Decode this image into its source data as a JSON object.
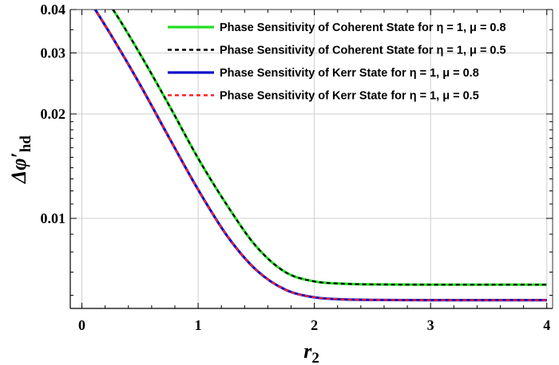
{
  "chart_data": {
    "type": "line",
    "x_axis": {
      "label": "r",
      "label_subscript": "2",
      "range": [
        -0.1,
        4.05
      ],
      "ticks": [
        0,
        1,
        2,
        3,
        4
      ],
      "tick_labels": [
        "0",
        "1",
        "2",
        "3",
        "4"
      ]
    },
    "y_axis": {
      "label": "Δφ′",
      "label_subscript": "hd",
      "scale": "log",
      "range": [
        0.0055,
        0.04
      ],
      "ticks": [
        0.01,
        0.02,
        0.03,
        0.04
      ],
      "tick_labels": [
        "0.01",
        "0.02",
        "0.03",
        "0.04"
      ]
    },
    "grid": true,
    "legend_position": "top-right",
    "series": [
      {
        "name": "Phase Sensitivity of Coherent State for η = 1, μ = 0.8",
        "color": "#22dd22",
        "style": "solid",
        "x": [
          0.0,
          0.25,
          0.5,
          0.75,
          1.0,
          1.25,
          1.5,
          1.75,
          2.0,
          2.25,
          2.5,
          3.0,
          3.5,
          4.0
        ],
        "y": [
          0.052,
          0.0408,
          0.0298,
          0.0212,
          0.0149,
          0.0109,
          0.0083,
          0.007,
          0.00658,
          0.00648,
          0.00645,
          0.00644,
          0.00644,
          0.00644
        ]
      },
      {
        "name": "Phase Sensitivity of Coherent State for η = 1, μ = 0.5",
        "color": "#000000",
        "style": "dashed",
        "x": [
          0.0,
          0.25,
          0.5,
          0.75,
          1.0,
          1.25,
          1.5,
          1.75,
          2.0,
          2.25,
          2.5,
          3.0,
          3.5,
          4.0
        ],
        "y": [
          0.052,
          0.0408,
          0.0298,
          0.0212,
          0.0149,
          0.0109,
          0.0083,
          0.007,
          0.00658,
          0.00648,
          0.00645,
          0.00644,
          0.00644,
          0.00644
        ]
      },
      {
        "name": "Phase Sensitivity of Kerr State for η = 1, μ = 0.8",
        "color": "#1010cc",
        "style": "solid",
        "x": [
          0.0,
          0.25,
          0.5,
          0.75,
          1.0,
          1.25,
          1.5,
          1.75,
          2.0,
          2.25,
          2.5,
          3.0,
          3.5,
          4.0
        ],
        "y": [
          0.046,
          0.0338,
          0.0243,
          0.0171,
          0.0121,
          0.0089,
          0.0071,
          0.00623,
          0.00592,
          0.00584,
          0.00582,
          0.00581,
          0.00581,
          0.00581
        ]
      },
      {
        "name": "Phase Sensitivity of Kerr State for η = 1, μ = 0.5",
        "color": "#ff2020",
        "style": "dashed",
        "x": [
          0.0,
          0.25,
          0.5,
          0.75,
          1.0,
          1.25,
          1.5,
          1.75,
          2.0,
          2.25,
          2.5,
          3.0,
          3.5,
          4.0
        ],
        "y": [
          0.046,
          0.0338,
          0.0243,
          0.0171,
          0.0121,
          0.0089,
          0.0071,
          0.00623,
          0.00592,
          0.00584,
          0.00582,
          0.00581,
          0.00581,
          0.00581
        ]
      }
    ]
  }
}
